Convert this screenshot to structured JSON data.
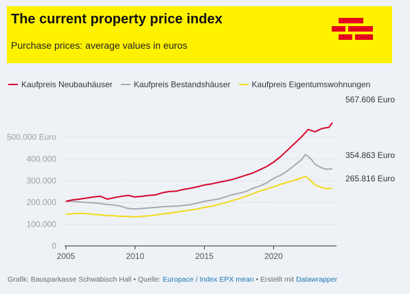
{
  "header": {
    "title": "The current property price index",
    "subtitle": "Purchase prices: average values in euros",
    "background_color": "#fff200",
    "logo_icon": "schwaebisch-hall-brick-logo",
    "logo_color": "#e3051b"
  },
  "chart_data": {
    "type": "line",
    "title": "The current property price index",
    "subtitle": "Purchase prices: average values in euros",
    "xlabel": "",
    "ylabel": "",
    "xlim": [
      2005,
      2024.3
    ],
    "ylim": [
      0,
      600000
    ],
    "x_ticks": [
      "2005",
      "2010",
      "2015",
      "2020"
    ],
    "y_ticks": [
      "0",
      "100.000",
      "200.000",
      "300.000",
      "400.000",
      "500.000 Euro"
    ],
    "grid": "horizontal dotted",
    "legend_position": "top",
    "series": [
      {
        "name": "Kaufpreis Neubauhäuser",
        "color": "#d6062c",
        "end_label": "567.606 Euro",
        "points": [
          [
            2005.0,
            205000
          ],
          [
            2005.5,
            212000
          ],
          [
            2006.0,
            215000
          ],
          [
            2006.5,
            220000
          ],
          [
            2007.0,
            225000
          ],
          [
            2007.5,
            228000
          ],
          [
            2008.0,
            215000
          ],
          [
            2008.5,
            222000
          ],
          [
            2009.0,
            228000
          ],
          [
            2009.5,
            232000
          ],
          [
            2010.0,
            225000
          ],
          [
            2010.5,
            228000
          ],
          [
            2011.0,
            232000
          ],
          [
            2011.5,
            235000
          ],
          [
            2012.0,
            245000
          ],
          [
            2012.5,
            250000
          ],
          [
            2013.0,
            252000
          ],
          [
            2013.5,
            260000
          ],
          [
            2014.0,
            265000
          ],
          [
            2014.5,
            272000
          ],
          [
            2015.0,
            280000
          ],
          [
            2015.5,
            285000
          ],
          [
            2016.0,
            292000
          ],
          [
            2016.5,
            298000
          ],
          [
            2017.0,
            305000
          ],
          [
            2017.5,
            315000
          ],
          [
            2018.0,
            325000
          ],
          [
            2018.5,
            335000
          ],
          [
            2019.0,
            350000
          ],
          [
            2019.5,
            365000
          ],
          [
            2020.0,
            385000
          ],
          [
            2020.5,
            410000
          ],
          [
            2021.0,
            440000
          ],
          [
            2021.5,
            470000
          ],
          [
            2022.0,
            500000
          ],
          [
            2022.5,
            535000
          ],
          [
            2023.0,
            525000
          ],
          [
            2023.5,
            540000
          ],
          [
            2024.0,
            545000
          ],
          [
            2024.25,
            567606
          ]
        ]
      },
      {
        "name": "Kaufpreis Bestandshäuser",
        "color": "#a7aab0",
        "end_label": "354.863 Euro",
        "points": [
          [
            2005.0,
            205000
          ],
          [
            2005.5,
            205000
          ],
          [
            2006.0,
            202000
          ],
          [
            2006.5,
            200000
          ],
          [
            2007.0,
            198000
          ],
          [
            2007.5,
            195000
          ],
          [
            2008.0,
            190000
          ],
          [
            2008.5,
            188000
          ],
          [
            2009.0,
            182000
          ],
          [
            2009.5,
            172000
          ],
          [
            2010.0,
            170000
          ],
          [
            2010.5,
            172000
          ],
          [
            2011.0,
            175000
          ],
          [
            2011.5,
            177000
          ],
          [
            2012.0,
            180000
          ],
          [
            2012.5,
            182000
          ],
          [
            2013.0,
            183000
          ],
          [
            2013.5,
            186000
          ],
          [
            2014.0,
            190000
          ],
          [
            2014.5,
            197000
          ],
          [
            2015.0,
            205000
          ],
          [
            2015.5,
            210000
          ],
          [
            2016.0,
            215000
          ],
          [
            2016.5,
            225000
          ],
          [
            2017.0,
            235000
          ],
          [
            2017.5,
            242000
          ],
          [
            2018.0,
            250000
          ],
          [
            2018.5,
            265000
          ],
          [
            2019.0,
            275000
          ],
          [
            2019.5,
            290000
          ],
          [
            2020.0,
            310000
          ],
          [
            2020.5,
            325000
          ],
          [
            2021.0,
            345000
          ],
          [
            2021.5,
            370000
          ],
          [
            2022.0,
            395000
          ],
          [
            2022.3,
            420000
          ],
          [
            2022.7,
            400000
          ],
          [
            2023.0,
            375000
          ],
          [
            2023.5,
            358000
          ],
          [
            2023.8,
            352000
          ],
          [
            2024.25,
            354863
          ]
        ]
      },
      {
        "name": "Kaufpreis Eigentumswohnungen",
        "color": "#f2da1a",
        "end_label": "265.816 Euro",
        "points": [
          [
            2005.0,
            145000
          ],
          [
            2005.5,
            148000
          ],
          [
            2006.0,
            150000
          ],
          [
            2006.5,
            148000
          ],
          [
            2007.0,
            145000
          ],
          [
            2007.5,
            143000
          ],
          [
            2008.0,
            140000
          ],
          [
            2008.5,
            138000
          ],
          [
            2009.0,
            136000
          ],
          [
            2009.5,
            135000
          ],
          [
            2010.0,
            133000
          ],
          [
            2010.5,
            136000
          ],
          [
            2011.0,
            138000
          ],
          [
            2011.5,
            142000
          ],
          [
            2012.0,
            147000
          ],
          [
            2012.5,
            151000
          ],
          [
            2013.0,
            155000
          ],
          [
            2013.5,
            160000
          ],
          [
            2014.0,
            165000
          ],
          [
            2014.5,
            170000
          ],
          [
            2015.0,
            177000
          ],
          [
            2015.5,
            182000
          ],
          [
            2016.0,
            190000
          ],
          [
            2016.5,
            198000
          ],
          [
            2017.0,
            208000
          ],
          [
            2017.5,
            217000
          ],
          [
            2018.0,
            228000
          ],
          [
            2018.5,
            240000
          ],
          [
            2019.0,
            252000
          ],
          [
            2019.5,
            262000
          ],
          [
            2020.0,
            272000
          ],
          [
            2020.5,
            283000
          ],
          [
            2021.0,
            292000
          ],
          [
            2021.5,
            302000
          ],
          [
            2022.0,
            312000
          ],
          [
            2022.3,
            320000
          ],
          [
            2022.7,
            300000
          ],
          [
            2023.0,
            280000
          ],
          [
            2023.5,
            268000
          ],
          [
            2023.8,
            262000
          ],
          [
            2024.25,
            265816
          ]
        ]
      }
    ]
  },
  "footer": {
    "prefix": "Grafik: Bausparkasse Schwäbisch Hall • Quelle: ",
    "source_link": "Europace / Index EPX mean",
    "middle": " • Erstellt mit ",
    "tool_link": "Datawrapper"
  }
}
